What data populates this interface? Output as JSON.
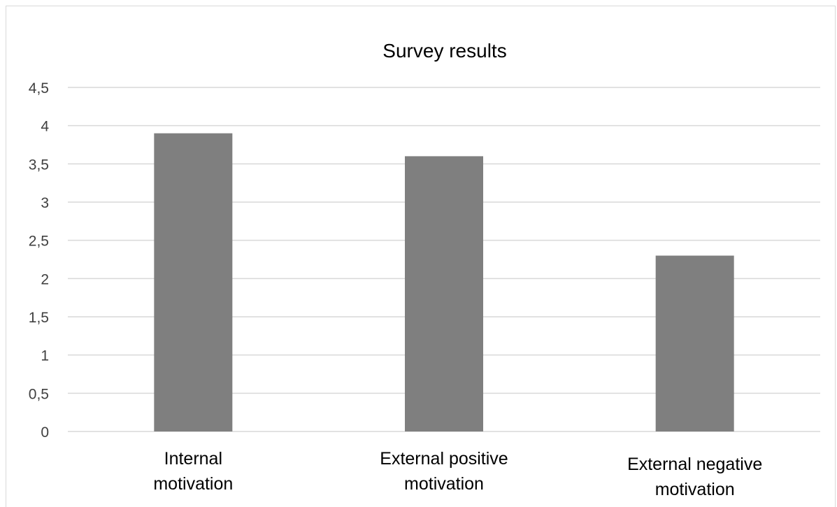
{
  "chart_data": {
    "type": "bar",
    "title": "Survey results",
    "categories": [
      [
        "Internal",
        "motivation"
      ],
      [
        "External positive",
        "motivation"
      ],
      [
        "External negative",
        "motivation"
      ]
    ],
    "values": [
      3.9,
      3.6,
      2.3
    ],
    "xlabel": "",
    "ylabel": "",
    "ylim": [
      0,
      4.5
    ],
    "yticks": [
      0,
      0.5,
      1,
      1.5,
      2,
      2.5,
      3,
      3.5,
      4,
      4.5
    ],
    "ytick_labels": [
      "0",
      "0,5",
      "1",
      "1,5",
      "2",
      "2,5",
      "3",
      "3,5",
      "4",
      "4,5"
    ],
    "grid": true,
    "legend": "none",
    "bar_color": "#7f7f7f",
    "grid_color": "#d9d9d9"
  }
}
